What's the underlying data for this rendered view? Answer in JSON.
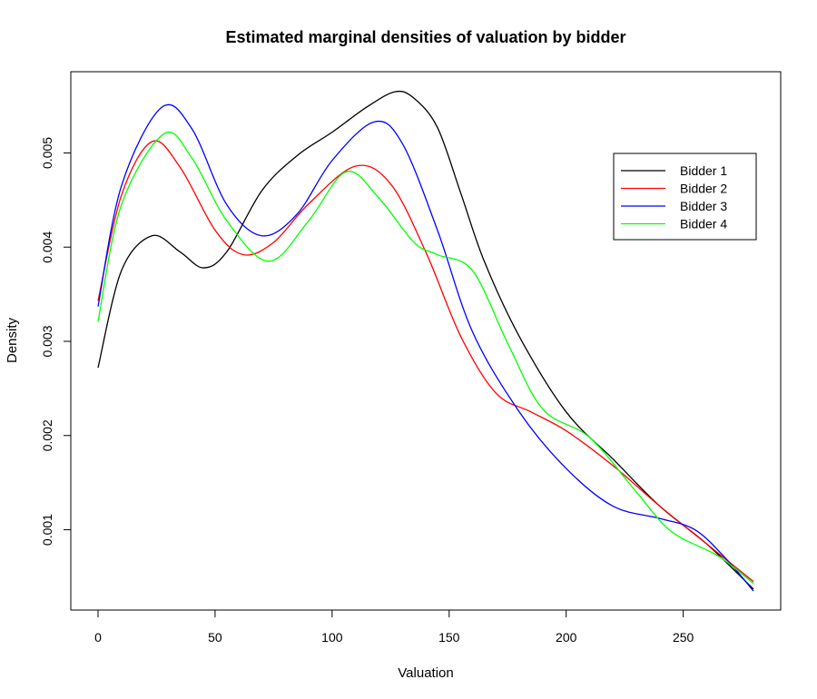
{
  "chart_data": {
    "type": "line",
    "title": "Estimated marginal densities of valuation by bidder",
    "xlabel": "Valuation",
    "ylabel": "Density",
    "xlim": [
      0,
      280
    ],
    "ylim": [
      0.00035,
      0.00565
    ],
    "x_ticks": [
      0,
      50,
      100,
      150,
      200,
      250
    ],
    "y_ticks": [
      0.001,
      0.002,
      0.003,
      0.004,
      0.005
    ],
    "x_tick_labels": [
      "0",
      "50",
      "100",
      "150",
      "200",
      "250"
    ],
    "y_tick_labels": [
      "0.001",
      "0.002",
      "0.003",
      "0.004",
      "0.005"
    ],
    "grid": false,
    "legend_position": "top-right",
    "series": [
      {
        "name": "Bidder 1",
        "color": "#000000",
        "x": [
          0,
          10,
          23,
          35,
          45,
          55,
          70,
          85,
          100,
          115,
          127,
          135,
          145,
          155,
          165,
          180,
          200,
          220,
          240,
          260,
          280
        ],
        "y": [
          0.00272,
          0.00375,
          0.00412,
          0.00395,
          0.00378,
          0.00395,
          0.0046,
          0.00497,
          0.00522,
          0.00549,
          0.00565,
          0.00558,
          0.00527,
          0.00457,
          0.00385,
          0.00305,
          0.00225,
          0.00175,
          0.00125,
          0.00085,
          0.00037
        ]
      },
      {
        "name": "Bidder 2",
        "color": "#ff0000",
        "x": [
          0,
          10,
          23,
          35,
          50,
          62,
          75,
          90,
          110,
          125,
          140,
          155,
          170,
          185,
          200,
          220,
          240,
          260,
          280
        ],
        "y": [
          0.00343,
          0.00455,
          0.00512,
          0.00485,
          0.00418,
          0.00392,
          0.00405,
          0.00446,
          0.00486,
          0.00467,
          0.00395,
          0.00305,
          0.00245,
          0.00225,
          0.00205,
          0.00168,
          0.00125,
          0.00085,
          0.00045
        ]
      },
      {
        "name": "Bidder 3",
        "color": "#0000ff",
        "x": [
          0,
          10,
          27,
          40,
          55,
          70,
          85,
          100,
          118,
          130,
          145,
          160,
          180,
          200,
          220,
          240,
          255,
          268,
          280
        ],
        "y": [
          0.00337,
          0.00465,
          0.00548,
          0.00526,
          0.00445,
          0.00412,
          0.00435,
          0.00492,
          0.00533,
          0.0051,
          0.00418,
          0.0031,
          0.00225,
          0.00165,
          0.00125,
          0.00112,
          0.001,
          0.0007,
          0.00035
        ]
      },
      {
        "name": "Bidder 4",
        "color": "#00ff00",
        "x": [
          0,
          10,
          28,
          40,
          55,
          73,
          90,
          106,
          120,
          135,
          145,
          160,
          175,
          190,
          210,
          230,
          245,
          265,
          280
        ],
        "y": [
          0.00321,
          0.00445,
          0.0052,
          0.00495,
          0.00428,
          0.00385,
          0.00428,
          0.0048,
          0.00452,
          0.00405,
          0.00392,
          0.00375,
          0.00298,
          0.00228,
          0.00198,
          0.0014,
          0.00098,
          0.00072,
          0.00043
        ]
      }
    ]
  }
}
